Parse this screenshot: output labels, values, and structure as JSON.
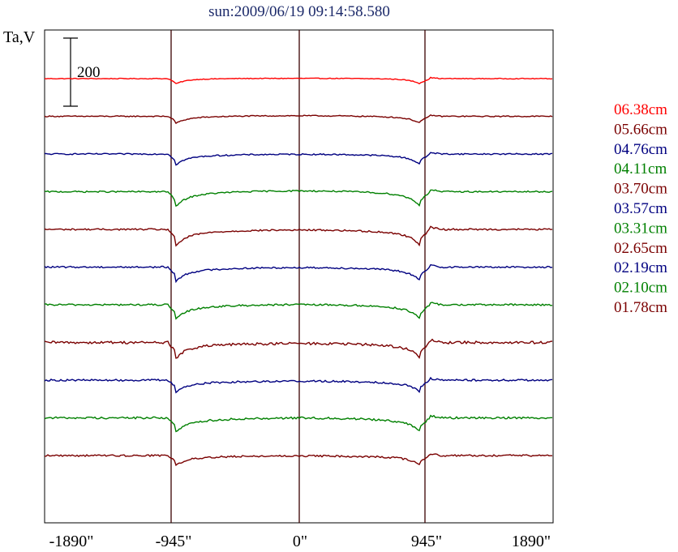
{
  "chart_data": {
    "type": "line",
    "title": "sun:2009/06/19 09:14:58.580",
    "ylabel": "Ta,V",
    "xlim": [
      -2000,
      2000
    ],
    "x_ticks": [
      {
        "value": -1890,
        "label": "-1890\""
      },
      {
        "value": -945,
        "label": "-945\""
      },
      {
        "value": 0,
        "label": "0\""
      },
      {
        "value": 945,
        "label": "945\""
      },
      {
        "value": 1890,
        "label": "1890\""
      }
    ],
    "vertical_lines": [
      -945,
      0,
      945
    ],
    "scale_bar": {
      "label": "200",
      "value": 200
    },
    "limb_x": 945,
    "series": [
      {
        "name": "06.38cm",
        "color": "#ff0000",
        "baseline": 0,
        "depth": 5,
        "disk": 5,
        "dip": 14,
        "noise": 1.0
      },
      {
        "name": "05.66cm",
        "color": "#7a0000",
        "baseline": 0,
        "depth": 12,
        "disk": 12,
        "dip": 16,
        "noise": 1.5
      },
      {
        "name": "04.76cm",
        "color": "#000080",
        "baseline": 0,
        "depth": 20,
        "disk": 16,
        "dip": 22,
        "noise": 1.8
      },
      {
        "name": "04.11cm",
        "color": "#008000",
        "baseline": 0,
        "depth": 30,
        "disk": 28,
        "dip": 30,
        "noise": 2.0
      },
      {
        "name": "03.70cm",
        "color": "#7a0000",
        "baseline": 0,
        "depth": 33,
        "disk": 26,
        "dip": 32,
        "noise": 2.2
      },
      {
        "name": "03.57cm",
        "color": "#000080",
        "baseline": 0,
        "depth": 28,
        "disk": 22,
        "dip": 28,
        "noise": 2.2
      },
      {
        "name": "03.31cm",
        "color": "#008000",
        "baseline": 0,
        "depth": 28,
        "disk": 24,
        "dip": 30,
        "noise": 2.4
      },
      {
        "name": "02.65cm",
        "color": "#7a0000",
        "baseline": 0,
        "depth": 30,
        "disk": 22,
        "dip": 32,
        "noise": 3.5
      },
      {
        "name": "02.19cm",
        "color": "#000080",
        "baseline": 0,
        "depth": 25,
        "disk": 18,
        "dip": 22,
        "noise": 2.6
      },
      {
        "name": "02.10cm",
        "color": "#008000",
        "baseline": 0,
        "depth": 30,
        "disk": 25,
        "dip": 28,
        "noise": 2.8
      },
      {
        "name": "01.78cm",
        "color": "#7a0000",
        "baseline": 0,
        "depth": 18,
        "disk": 14,
        "dip": 20,
        "noise": 2.4
      }
    ]
  }
}
